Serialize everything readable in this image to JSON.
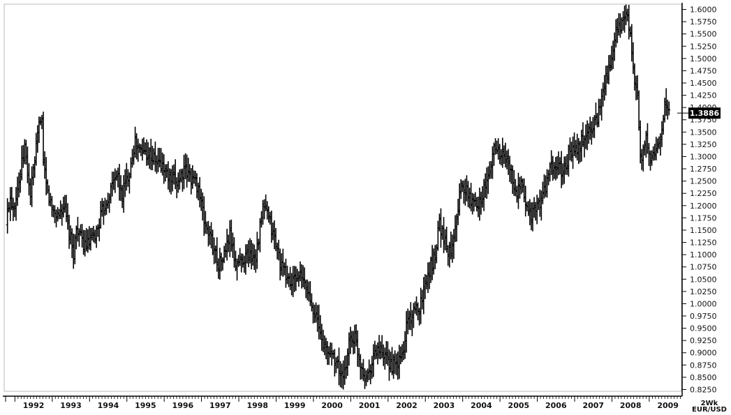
{
  "chart_data": {
    "type": "bar",
    "style": "ohlc",
    "title": "",
    "series_name": "EUR/USD",
    "corner_label": {
      "period": "2Wk",
      "symbol": "EUR/USD"
    },
    "last_price_label": "1.3886",
    "last_price_value": 1.3886,
    "ylim": [
      0.82,
      1.605
    ],
    "xlim": [
      1991.75,
      2009.75
    ],
    "y_ticks": [
      "1.6000",
      "1.5750",
      "1.5500",
      "1.5250",
      "1.5000",
      "1.4750",
      "1.4500",
      "1.4250",
      "1.4000",
      "1.3750",
      "1.3500",
      "1.3250",
      "1.3000",
      "1.2750",
      "1.2500",
      "1.2250",
      "1.2000",
      "1.1750",
      "1.1500",
      "1.1250",
      "1.1000",
      "1.0750",
      "1.0500",
      "1.0250",
      "1.0000",
      "0.9750",
      "0.9500",
      "0.9250",
      "0.9000",
      "0.8750",
      "0.8500",
      "0.8250"
    ],
    "x_ticks": [
      "1992",
      "1993",
      "1994",
      "1995",
      "1996",
      "1997",
      "1998",
      "1999",
      "2000",
      "2001",
      "2002",
      "2003",
      "2004",
      "2005",
      "2006",
      "2007",
      "2008",
      "2009"
    ],
    "grid": false,
    "legend": "none",
    "bar_color": "#000000",
    "price_points": [
      [
        1991.8,
        1.16
      ],
      [
        1991.9,
        1.22
      ],
      [
        1992.0,
        1.2
      ],
      [
        1992.15,
        1.25
      ],
      [
        1992.3,
        1.32
      ],
      [
        1992.45,
        1.22
      ],
      [
        1992.55,
        1.28
      ],
      [
        1992.7,
        1.37
      ],
      [
        1992.75,
        1.4
      ],
      [
        1992.8,
        1.28
      ],
      [
        1992.9,
        1.23
      ],
      [
        1993.05,
        1.19
      ],
      [
        1993.2,
        1.18
      ],
      [
        1993.35,
        1.2
      ],
      [
        1993.5,
        1.14
      ],
      [
        1993.6,
        1.1
      ],
      [
        1993.7,
        1.16
      ],
      [
        1993.85,
        1.12
      ],
      [
        1994.0,
        1.12
      ],
      [
        1994.2,
        1.14
      ],
      [
        1994.35,
        1.18
      ],
      [
        1994.6,
        1.23
      ],
      [
        1994.75,
        1.27
      ],
      [
        1994.9,
        1.22
      ],
      [
        1995.1,
        1.27
      ],
      [
        1995.25,
        1.33
      ],
      [
        1995.4,
        1.31
      ],
      [
        1995.6,
        1.31
      ],
      [
        1995.8,
        1.29
      ],
      [
        1996.0,
        1.28
      ],
      [
        1996.2,
        1.25
      ],
      [
        1996.4,
        1.25
      ],
      [
        1996.55,
        1.27
      ],
      [
        1996.75,
        1.26
      ],
      [
        1996.95,
        1.24
      ],
      [
        1997.1,
        1.17
      ],
      [
        1997.3,
        1.13
      ],
      [
        1997.5,
        1.08
      ],
      [
        1997.65,
        1.1
      ],
      [
        1997.8,
        1.14
      ],
      [
        1997.95,
        1.08
      ],
      [
        1998.1,
        1.09
      ],
      [
        1998.3,
        1.1
      ],
      [
        1998.5,
        1.1
      ],
      [
        1998.7,
        1.2
      ],
      [
        1998.85,
        1.17
      ],
      [
        1999.0,
        1.13
      ],
      [
        1999.2,
        1.07
      ],
      [
        1999.45,
        1.04
      ],
      [
        1999.65,
        1.06
      ],
      [
        1999.85,
        1.03
      ],
      [
        2000.05,
        0.99
      ],
      [
        2000.25,
        0.93
      ],
      [
        2000.4,
        0.9
      ],
      [
        2000.55,
        0.9
      ],
      [
        2000.75,
        0.86
      ],
      [
        2000.85,
        0.84
      ],
      [
        2001.0,
        0.93
      ],
      [
        2001.15,
        0.93
      ],
      [
        2001.3,
        0.88
      ],
      [
        2001.45,
        0.85
      ],
      [
        2001.6,
        0.88
      ],
      [
        2001.75,
        0.91
      ],
      [
        2001.9,
        0.89
      ],
      [
        2002.05,
        0.88
      ],
      [
        2002.25,
        0.87
      ],
      [
        2002.45,
        0.9
      ],
      [
        2002.55,
        0.97
      ],
      [
        2002.75,
        0.98
      ],
      [
        2002.9,
        1.0
      ],
      [
        2003.1,
        1.06
      ],
      [
        2003.3,
        1.1
      ],
      [
        2003.4,
        1.17
      ],
      [
        2003.55,
        1.13
      ],
      [
        2003.7,
        1.1
      ],
      [
        2003.85,
        1.17
      ],
      [
        2004.0,
        1.24
      ],
      [
        2004.2,
        1.22
      ],
      [
        2004.35,
        1.2
      ],
      [
        2004.55,
        1.22
      ],
      [
        2004.75,
        1.26
      ],
      [
        2004.9,
        1.33
      ],
      [
        2005.0,
        1.31
      ],
      [
        2005.15,
        1.3
      ],
      [
        2005.3,
        1.28
      ],
      [
        2005.45,
        1.22
      ],
      [
        2005.6,
        1.24
      ],
      [
        2005.75,
        1.2
      ],
      [
        2005.9,
        1.18
      ],
      [
        2006.05,
        1.2
      ],
      [
        2006.2,
        1.22
      ],
      [
        2006.35,
        1.27
      ],
      [
        2006.55,
        1.28
      ],
      [
        2006.75,
        1.27
      ],
      [
        2006.9,
        1.31
      ],
      [
        2007.1,
        1.31
      ],
      [
        2007.3,
        1.34
      ],
      [
        2007.5,
        1.36
      ],
      [
        2007.65,
        1.38
      ],
      [
        2007.85,
        1.46
      ],
      [
        2008.0,
        1.48
      ],
      [
        2008.15,
        1.55
      ],
      [
        2008.3,
        1.57
      ],
      [
        2008.4,
        1.59
      ],
      [
        2008.5,
        1.57
      ],
      [
        2008.6,
        1.47
      ],
      [
        2008.72,
        1.43
      ],
      [
        2008.82,
        1.27
      ],
      [
        2008.95,
        1.35
      ],
      [
        2009.05,
        1.28
      ],
      [
        2009.15,
        1.3
      ],
      [
        2009.3,
        1.33
      ],
      [
        2009.45,
        1.4
      ],
      [
        2009.55,
        1.39
      ]
    ]
  }
}
